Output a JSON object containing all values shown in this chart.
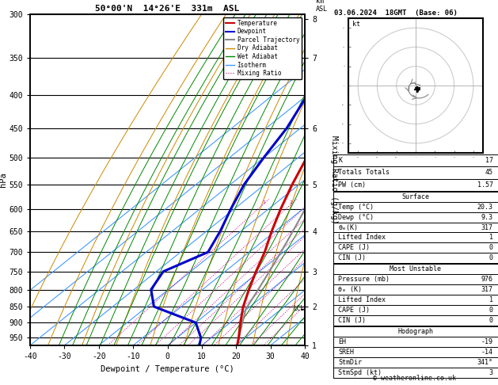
{
  "title_left": "50°00'N  14°26'E  331m  ASL",
  "title_right": "03.06.2024  18GMT  (Base: 06)",
  "xlabel": "Dewpoint / Temperature (°C)",
  "ylabel_left": "hPa",
  "ylabel_right_mixing": "Mixing Ratio (g/kg)",
  "pressure_levels": [
    300,
    350,
    400,
    450,
    500,
    550,
    600,
    650,
    700,
    750,
    800,
    850,
    900,
    950
  ],
  "temp_range": [
    -40,
    40
  ],
  "km_ticks": [
    1,
    2,
    3,
    4,
    5,
    6,
    7,
    8
  ],
  "km_pressures": [
    976,
    850,
    750,
    650,
    550,
    450,
    350,
    305
  ],
  "lcl_pressure": 857,
  "background_color": "#ffffff",
  "temp_color": "#cc0000",
  "dewpoint_color": "#0000cc",
  "parcel_color": "#888888",
  "dry_adiabat_color": "#cc8800",
  "wet_adiabat_color": "#008800",
  "isotherm_color": "#4499ff",
  "mixing_ratio_color": "#cc0088",
  "grid_color": "#000000",
  "legend_items": [
    "Temperature",
    "Dewpoint",
    "Parcel Trajectory",
    "Dry Adiabat",
    "Wet Adiabat",
    "Isotherm",
    "Mixing Ratio"
  ],
  "stats_K": 17,
  "stats_TT": 45,
  "stats_PW": 1.57,
  "surf_temp": 20.3,
  "surf_dewp": 9.3,
  "surf_theta_e": 317,
  "surf_li": 1,
  "surf_cape": 0,
  "surf_cin": 0,
  "mu_pressure": 976,
  "mu_theta_e": 317,
  "mu_li": 1,
  "mu_cape": 0,
  "mu_cin": 0,
  "hodo_EH": -19,
  "hodo_SREH": -14,
  "hodo_StmDir": "341°",
  "hodo_StmSpd": 3,
  "copyright": "© weatheronline.co.uk",
  "temp_profile_p": [
    976,
    950,
    900,
    850,
    800,
    750,
    700,
    650,
    600,
    550,
    500,
    450,
    400,
    350,
    300
  ],
  "temp_profile_T": [
    20.3,
    18.0,
    13.0,
    8.0,
    3.5,
    -1.0,
    -5.5,
    -11.0,
    -16.5,
    -22.0,
    -27.5,
    -34.0,
    -41.0,
    -49.0,
    -57.0
  ],
  "dew_profile_p": [
    976,
    950,
    900,
    850,
    800,
    750,
    700,
    650,
    600,
    550,
    500,
    450,
    400,
    350,
    300
  ],
  "dew_profile_T": [
    9.3,
    7.0,
    0.0,
    -18.0,
    -25.0,
    -28.0,
    -22.0,
    -26.0,
    -31.0,
    -36.0,
    -40.0,
    -44.0,
    -50.0,
    -58.0,
    -65.0
  ],
  "skew_factor": 1.5
}
